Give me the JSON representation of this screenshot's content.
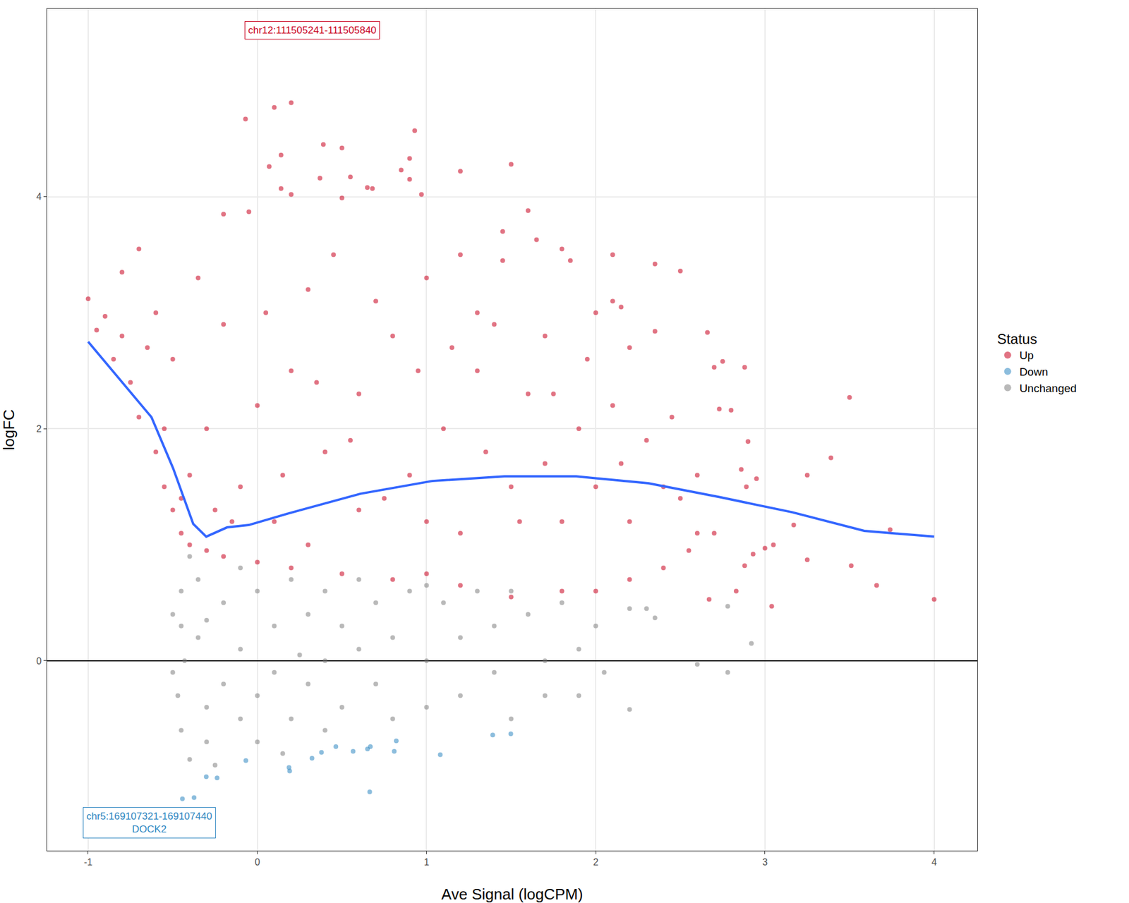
{
  "chart_data": {
    "type": "scatter",
    "x_label": "Ave Signal (logCPM)",
    "y_label": "logFC",
    "legend_title": "Status",
    "xlim": [
      -1.243,
      4.255
    ],
    "ylim": [
      -1.637,
      5.62
    ],
    "xticks": [
      -1,
      0,
      1,
      2,
      3,
      4
    ],
    "yticks": [
      0,
      2,
      4
    ],
    "grid": true,
    "legend": "right",
    "series": [
      {
        "name": "Up",
        "color": "#C8001E",
        "type": "scatter",
        "marker": "circle",
        "x": [
          4.0,
          3.74,
          3.66,
          3.51,
          3.5,
          3.39,
          3.25,
          3.25,
          3.17,
          3.05,
          3.04,
          3.0,
          2.93,
          2.9,
          2.89,
          2.95,
          2.88,
          2.86,
          2.83,
          2.88,
          2.75,
          2.73,
          2.8,
          2.66,
          2.67,
          2.7,
          2.5,
          2.35,
          2.35,
          2.2,
          2.0,
          2.1,
          2.15,
          2.1,
          1.8,
          1.85,
          1.65,
          1.6,
          1.5,
          1.45,
          1.45,
          1.2,
          1.2,
          0.93,
          0.9,
          0.97,
          0.85,
          0.9,
          0.68,
          0.65,
          0.5,
          0.55,
          0.39,
          0.5,
          0.37,
          0.2,
          0.1,
          -0.07,
          0.14,
          0.07,
          0.14,
          0.2,
          -0.2,
          -0.05,
          -0.7,
          -0.8,
          -0.9,
          -1.0,
          -0.95,
          -0.85,
          -0.75,
          -0.7,
          -0.6,
          -0.55,
          -0.5,
          -0.45,
          -0.4,
          -0.3,
          -0.2,
          0.0,
          0.2,
          0.5,
          0.8,
          1.0,
          1.2,
          1.5,
          1.8,
          2.0,
          2.2,
          2.4,
          2.6,
          2.5,
          2.3,
          2.1,
          1.9,
          1.7,
          1.5,
          1.3,
          1.1,
          1.0,
          0.8,
          0.6,
          0.4,
          0.3,
          0.2,
          0.0,
          -0.1,
          -0.2,
          -0.3,
          -0.4,
          -0.5,
          -0.6,
          0.1,
          0.3,
          0.6,
          0.9,
          1.2,
          1.4,
          1.6,
          1.8,
          2.0,
          2.2,
          -0.8,
          -0.65,
          -0.35,
          0.45,
          0.7,
          1.0,
          1.3,
          1.7,
          0.05,
          -0.15,
          -0.25,
          -0.45,
          -0.55,
          0.15,
          0.35,
          0.55,
          0.75,
          0.95,
          1.15,
          1.35,
          1.55,
          1.75,
          1.95,
          2.15,
          2.4,
          2.45,
          2.6,
          2.7,
          2.55
        ],
        "values": [
          0.53,
          1.13,
          0.65,
          0.82,
          2.27,
          1.75,
          1.6,
          0.87,
          1.17,
          1.0,
          0.47,
          0.97,
          0.92,
          1.89,
          1.5,
          1.57,
          0.82,
          1.65,
          0.6,
          2.53,
          2.58,
          2.17,
          2.16,
          2.83,
          0.53,
          2.53,
          3.36,
          3.42,
          2.84,
          2.7,
          3.0,
          3.1,
          3.05,
          3.5,
          3.55,
          3.45,
          3.63,
          3.88,
          4.28,
          3.45,
          3.7,
          4.22,
          3.5,
          4.57,
          4.33,
          4.02,
          4.23,
          4.15,
          4.07,
          4.08,
          3.99,
          4.17,
          4.45,
          4.42,
          4.16,
          4.81,
          4.77,
          4.67,
          4.36,
          4.26,
          4.07,
          4.02,
          3.85,
          3.87,
          3.55,
          3.35,
          2.97,
          3.12,
          2.85,
          2.6,
          2.4,
          2.1,
          1.8,
          1.5,
          1.3,
          1.1,
          1.0,
          0.95,
          0.9,
          0.85,
          0.8,
          0.75,
          0.7,
          0.75,
          0.65,
          0.55,
          0.6,
          0.6,
          0.7,
          0.8,
          1.1,
          1.4,
          1.9,
          2.2,
          2.0,
          1.7,
          1.5,
          2.5,
          2.0,
          1.2,
          2.8,
          2.3,
          1.8,
          3.2,
          2.5,
          2.2,
          1.5,
          2.9,
          2.0,
          1.6,
          2.6,
          3.0,
          1.2,
          1.0,
          1.3,
          1.6,
          1.1,
          2.9,
          2.3,
          1.2,
          1.5,
          1.2,
          2.8,
          2.7,
          3.3,
          3.5,
          3.1,
          3.3,
          3.0,
          2.8,
          3.0,
          1.2,
          1.3,
          1.4,
          2.0,
          1.6,
          2.4,
          1.9,
          1.4,
          2.5,
          2.7,
          1.8,
          1.2,
          2.3,
          2.6,
          1.7,
          1.5,
          2.1,
          1.6,
          1.1,
          0.95
        ]
      },
      {
        "name": "Down",
        "color": "#2E86C1",
        "type": "scatter",
        "marker": "circle",
        "x": [
          -0.443,
          -0.374,
          -0.302,
          -0.238,
          -0.068,
          0.187,
          0.191,
          0.323,
          0.379,
          0.464,
          0.566,
          0.651,
          0.668,
          0.809,
          0.821,
          0.664,
          1.081,
          1.391,
          1.498
        ],
        "values": [
          -1.19,
          -1.18,
          -1.0,
          -1.01,
          -0.86,
          -0.92,
          -0.95,
          -0.84,
          -0.79,
          -0.74,
          -0.78,
          -0.76,
          -0.74,
          -0.78,
          -0.69,
          -1.13,
          -0.81,
          -0.64,
          -0.63
        ]
      },
      {
        "name": "Unchanged",
        "color": "#808080",
        "type": "scatter",
        "marker": "circle",
        "x": [
          -0.4,
          -0.45,
          -0.45,
          -0.43,
          -0.47,
          -0.45,
          -0.4,
          -0.35,
          -0.35,
          -0.3,
          -0.3,
          -0.2,
          -0.2,
          -0.1,
          -0.1,
          -0.1,
          0.0,
          0.0,
          0.0,
          0.1,
          0.1,
          0.2,
          0.2,
          0.3,
          0.3,
          0.4,
          0.4,
          0.4,
          0.5,
          0.5,
          0.6,
          0.6,
          0.7,
          0.7,
          0.8,
          0.8,
          0.9,
          1.0,
          1.0,
          1.1,
          1.2,
          1.2,
          1.3,
          1.4,
          1.4,
          1.5,
          1.6,
          1.7,
          1.7,
          1.8,
          1.9,
          1.9,
          2.0,
          2.05,
          2.2,
          2.2,
          2.35,
          2.3,
          2.6,
          2.78,
          2.78,
          2.92,
          1.5,
          1.0,
          -0.5,
          -0.5,
          -0.25,
          -0.3,
          0.15,
          0.25
        ],
        "values": [
          0.9,
          0.6,
          0.3,
          0.0,
          -0.3,
          -0.6,
          -0.85,
          0.7,
          0.2,
          -0.4,
          -0.7,
          0.5,
          -0.2,
          0.8,
          0.1,
          -0.5,
          0.6,
          -0.3,
          -0.7,
          0.3,
          -0.1,
          0.7,
          -0.5,
          0.4,
          -0.2,
          0.6,
          0.0,
          -0.6,
          0.3,
          -0.4,
          0.7,
          0.1,
          -0.2,
          0.5,
          0.2,
          -0.5,
          0.6,
          0.0,
          -0.4,
          0.5,
          0.2,
          -0.3,
          0.6,
          -0.1,
          0.3,
          -0.5,
          0.4,
          0.0,
          -0.3,
          0.5,
          0.1,
          -0.3,
          0.3,
          -0.1,
          0.45,
          -0.42,
          0.37,
          0.45,
          -0.03,
          -0.1,
          0.47,
          0.15,
          0.6,
          0.65,
          0.4,
          -0.1,
          -0.9,
          0.35,
          -0.8,
          0.05
        ]
      },
      {
        "type": "line",
        "color": "#3366FF",
        "line_style": "solid",
        "x": [
          -1,
          -0.838,
          -0.626,
          -0.498,
          -0.379,
          -0.302,
          -0.179,
          -0.051,
          0.183,
          0.609,
          1.034,
          1.46,
          1.885,
          2.311,
          2.736,
          3.162,
          3.587,
          4
        ],
        "values": [
          2.75,
          2.47,
          2.1,
          1.66,
          1.18,
          1.07,
          1.15,
          1.17,
          1.27,
          1.44,
          1.55,
          1.59,
          1.59,
          1.53,
          1.41,
          1.28,
          1.12,
          1.07
        ]
      }
    ],
    "annotations": [
      {
        "lines": [
          "chr12:111505241-111505840"
        ],
        "color": "#C8001E"
      },
      {
        "lines": [
          "chr5:169107321-169107440",
          "DOCK2"
        ],
        "color": "#2E86C1"
      }
    ]
  }
}
